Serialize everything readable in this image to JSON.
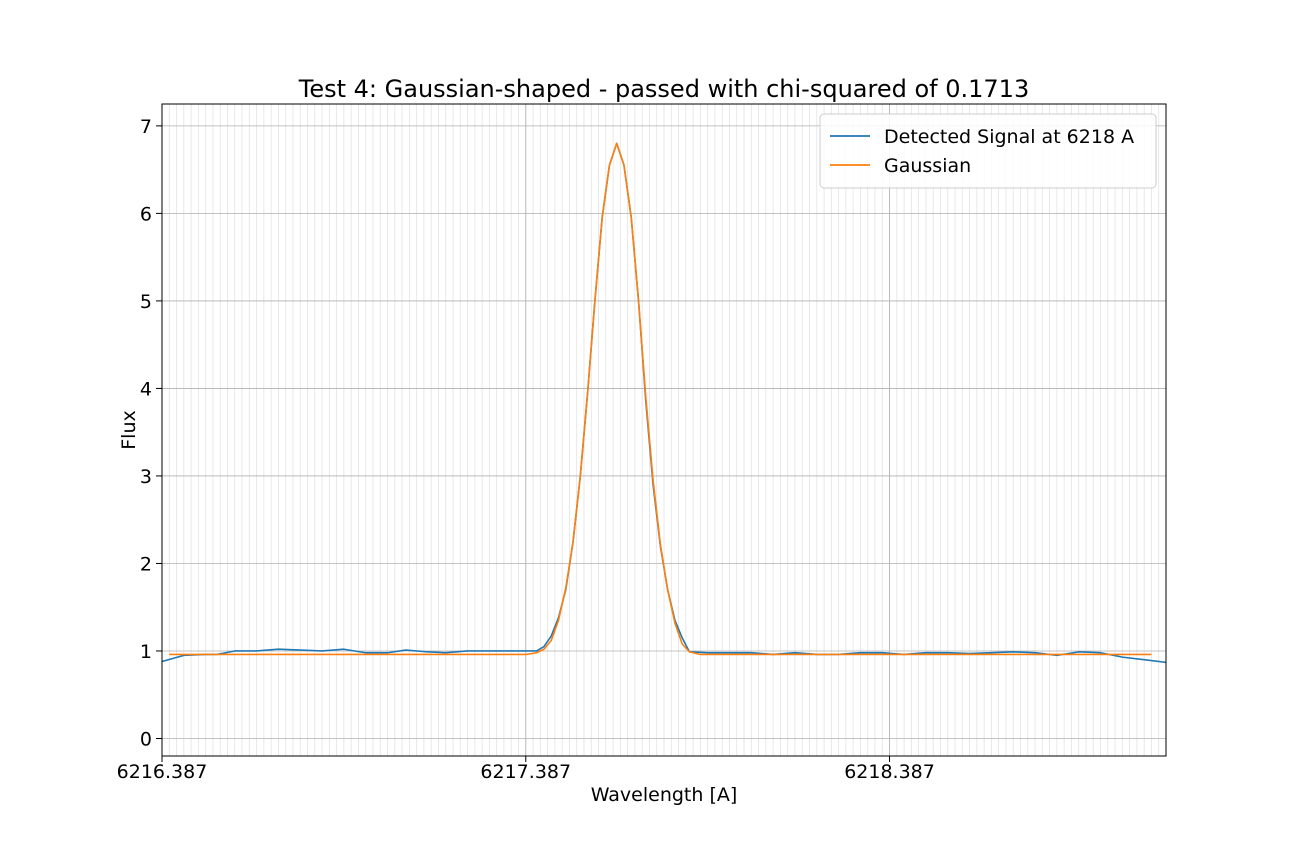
{
  "chart_data": {
    "type": "line",
    "title": "Test 4: Gaussian-shaped - passed with chi-squared of 0.1713",
    "xlabel": "Wavelength [A]",
    "ylabel": "Flux",
    "xlim": [
      6216.387,
      6219.147
    ],
    "ylim": [
      -0.2,
      7.25
    ],
    "x_ticks": [
      6216.387,
      6217.387,
      6218.387
    ],
    "x_tick_labels": [
      "6216.387",
      "6217.387",
      "6218.387"
    ],
    "y_ticks": [
      0,
      1,
      2,
      3,
      4,
      5,
      6,
      7
    ],
    "y_tick_labels": [
      "0",
      "1",
      "2",
      "3",
      "4",
      "5",
      "6",
      "7"
    ],
    "minor_grid_step": 0.02,
    "grid": true,
    "legend_position": "top-right",
    "series": [
      {
        "name": "Detected Signal at 6218 A",
        "color": "#1f77b4",
        "points": [
          [
            6216.387,
            0.88
          ],
          [
            6216.447,
            0.95
          ],
          [
            6216.507,
            0.96
          ],
          [
            6216.537,
            0.96
          ],
          [
            6216.587,
            1.0
          ],
          [
            6216.647,
            1.0
          ],
          [
            6216.707,
            1.02
          ],
          [
            6216.767,
            1.01
          ],
          [
            6216.827,
            1.0
          ],
          [
            6216.887,
            1.02
          ],
          [
            6216.947,
            0.98
          ],
          [
            6217.007,
            0.98
          ],
          [
            6217.057,
            1.01
          ],
          [
            6217.117,
            0.99
          ],
          [
            6217.167,
            0.98
          ],
          [
            6217.227,
            1.0
          ],
          [
            6217.287,
            1.0
          ],
          [
            6217.347,
            1.0
          ],
          [
            6217.387,
            1.0
          ],
          [
            6217.417,
            1.0
          ],
          [
            6217.437,
            1.05
          ],
          [
            6217.457,
            1.17
          ],
          [
            6217.477,
            1.38
          ],
          [
            6217.497,
            1.7
          ],
          [
            6217.517,
            2.25
          ],
          [
            6217.537,
            3.0
          ],
          [
            6217.557,
            3.95
          ],
          [
            6217.577,
            5.0
          ],
          [
            6217.597,
            5.95
          ],
          [
            6217.617,
            6.55
          ],
          [
            6217.637,
            6.8
          ],
          [
            6217.657,
            6.55
          ],
          [
            6217.677,
            5.95
          ],
          [
            6217.697,
            5.0
          ],
          [
            6217.717,
            3.85
          ],
          [
            6217.737,
            2.9
          ],
          [
            6217.757,
            2.2
          ],
          [
            6217.777,
            1.7
          ],
          [
            6217.797,
            1.35
          ],
          [
            6217.817,
            1.15
          ],
          [
            6217.837,
            0.99
          ],
          [
            6217.887,
            0.98
          ],
          [
            6217.947,
            0.98
          ],
          [
            6218.007,
            0.98
          ],
          [
            6218.067,
            0.96
          ],
          [
            6218.127,
            0.98
          ],
          [
            6218.187,
            0.96
          ],
          [
            6218.247,
            0.96
          ],
          [
            6218.307,
            0.98
          ],
          [
            6218.367,
            0.98
          ],
          [
            6218.427,
            0.96
          ],
          [
            6218.487,
            0.98
          ],
          [
            6218.547,
            0.98
          ],
          [
            6218.607,
            0.97
          ],
          [
            6218.667,
            0.98
          ],
          [
            6218.727,
            0.99
          ],
          [
            6218.787,
            0.98
          ],
          [
            6218.847,
            0.95
          ],
          [
            6218.907,
            0.99
          ],
          [
            6218.967,
            0.98
          ],
          [
            6219.027,
            0.93
          ],
          [
            6219.087,
            0.9
          ],
          [
            6219.147,
            0.87
          ]
        ]
      },
      {
        "name": "Gaussian",
        "color": "#ff7f0e",
        "points": [
          [
            6216.407,
            0.96
          ],
          [
            6216.607,
            0.96
          ],
          [
            6216.807,
            0.96
          ],
          [
            6217.007,
            0.96
          ],
          [
            6217.207,
            0.96
          ],
          [
            6217.387,
            0.96
          ],
          [
            6217.417,
            0.98
          ],
          [
            6217.437,
            1.02
          ],
          [
            6217.457,
            1.12
          ],
          [
            6217.477,
            1.35
          ],
          [
            6217.497,
            1.72
          ],
          [
            6217.517,
            2.25
          ],
          [
            6217.537,
            3.0
          ],
          [
            6217.557,
            3.95
          ],
          [
            6217.577,
            5.0
          ],
          [
            6217.597,
            5.95
          ],
          [
            6217.617,
            6.55
          ],
          [
            6217.637,
            6.8
          ],
          [
            6217.657,
            6.55
          ],
          [
            6217.677,
            5.95
          ],
          [
            6217.697,
            5.0
          ],
          [
            6217.717,
            3.9
          ],
          [
            6217.737,
            2.95
          ],
          [
            6217.757,
            2.22
          ],
          [
            6217.777,
            1.7
          ],
          [
            6217.797,
            1.32
          ],
          [
            6217.817,
            1.08
          ],
          [
            6217.837,
            0.99
          ],
          [
            6217.867,
            0.96
          ],
          [
            6218.067,
            0.96
          ],
          [
            6218.267,
            0.96
          ],
          [
            6218.467,
            0.96
          ],
          [
            6218.667,
            0.96
          ],
          [
            6218.867,
            0.96
          ],
          [
            6219.107,
            0.96
          ]
        ]
      }
    ]
  }
}
